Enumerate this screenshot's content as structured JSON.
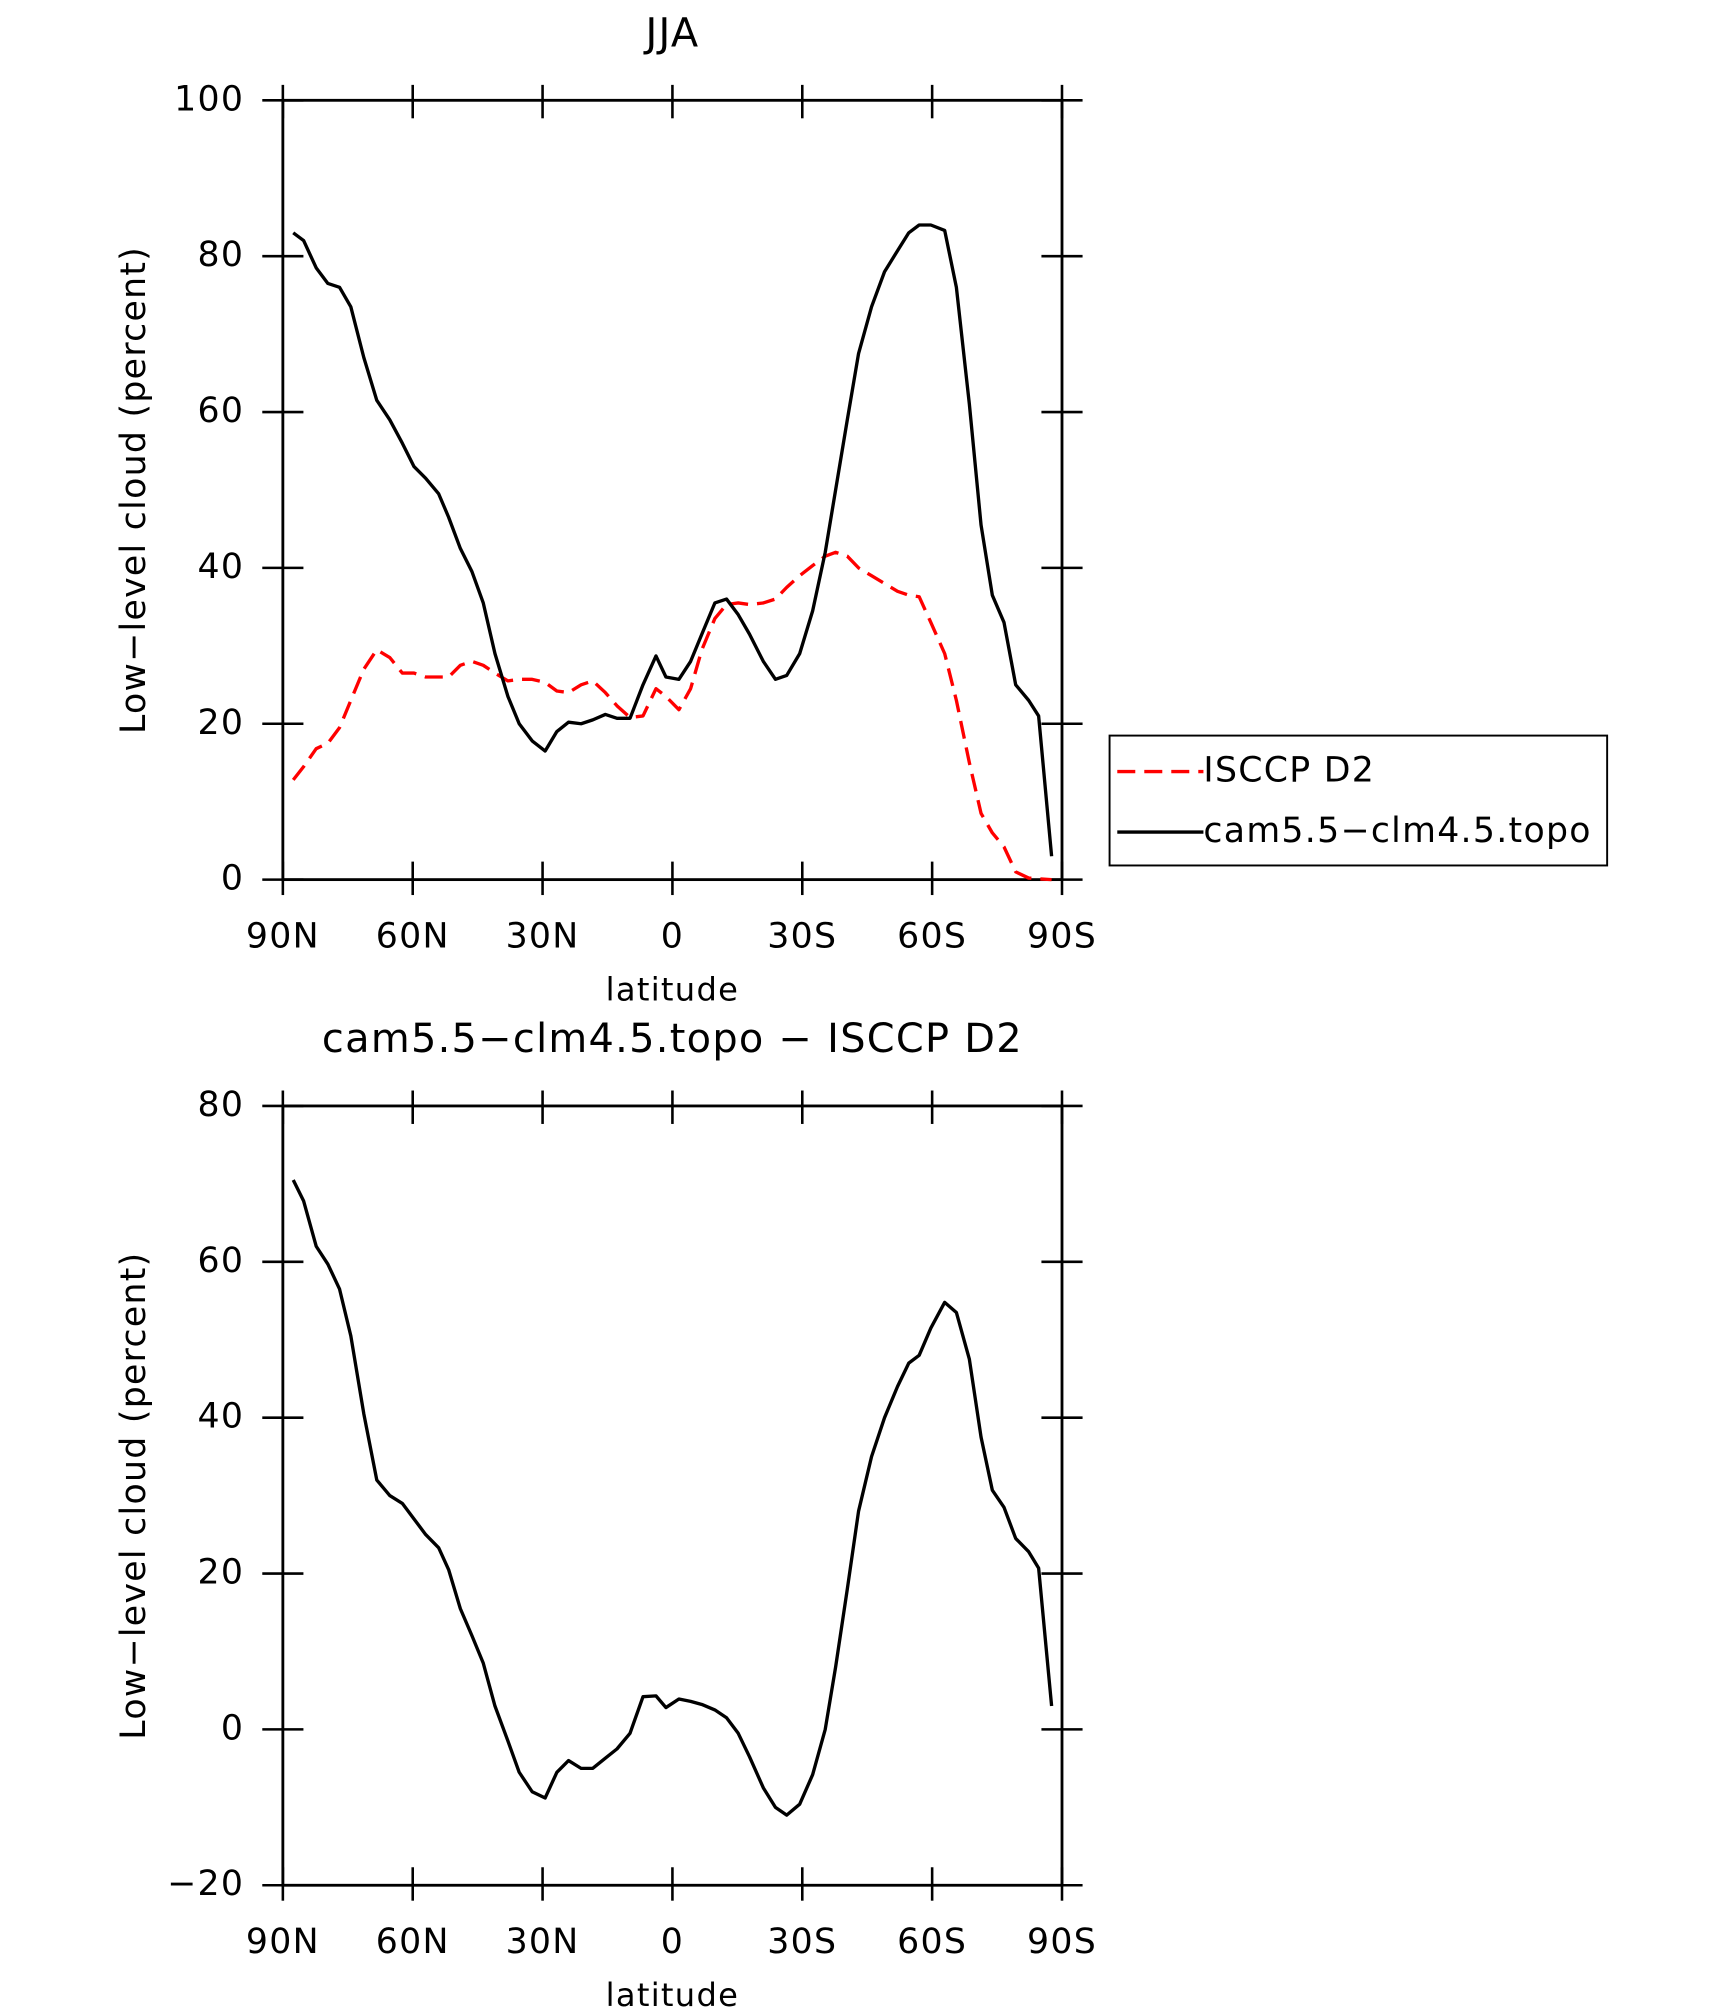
{
  "chart_data": [
    {
      "type": "line",
      "title": "JJA",
      "xlabel": "latitude",
      "ylabel": "Low−level cloud (percent)",
      "x": [
        87.6,
        85.2,
        82.3,
        79.6,
        76.9,
        74.3,
        71.3,
        68.3,
        65.3,
        62.4,
        59.7,
        57,
        54,
        51.7,
        49,
        46.3,
        43.7,
        41,
        38,
        35.4,
        32.4,
        29.4,
        26.7,
        24,
        21.1,
        18.4,
        15.5,
        12.8,
        9.8,
        6.8,
        3.8,
        1.5,
        -1.5,
        -4.2,
        -6.8,
        -9.8,
        -12.5,
        -15.2,
        -17.8,
        -21,
        -23.8,
        -26.4,
        -29.4,
        -32.4,
        -35.3,
        -37.7,
        -40.4,
        -43,
        -46,
        -49,
        -52,
        -54.6,
        -57,
        -59.7,
        -62.9,
        -65.6,
        -68.6,
        -71.3,
        -73.9,
        -76.6,
        -79.3,
        -82.3,
        -84.6,
        -87.6
      ],
      "series": [
        {
          "name": "ISCCP D2",
          "color": "#ff0000",
          "linestyle": "dashed",
          "values": [
            12.8,
            14.5,
            16.8,
            17.5,
            19.5,
            23,
            27,
            29.5,
            28.5,
            26.5,
            26.5,
            26,
            26,
            26,
            27.5,
            28,
            27.5,
            26.5,
            25.5,
            25.7,
            25.7,
            25.3,
            24.2,
            24,
            25,
            25.5,
            24,
            22.3,
            20.8,
            21,
            24.5,
            23.5,
            21.8,
            24.5,
            29.5,
            33.5,
            35.3,
            35.5,
            35.3,
            35.5,
            36,
            37.5,
            39,
            40.3,
            41.5,
            42,
            41.5,
            40,
            39,
            38,
            37,
            36.5,
            36.3,
            33,
            29,
            23,
            15,
            8.5,
            6,
            4.2,
            1,
            0.2,
            0.1,
            0
          ]
        },
        {
          "name": "cam5.5−clm4.5.topo",
          "color": "#000000",
          "linestyle": "solid",
          "values": [
            83,
            82,
            78.5,
            76.5,
            76,
            73.5,
            67,
            61.5,
            59,
            56,
            53,
            51.5,
            49.5,
            46.5,
            42.5,
            39.5,
            35.5,
            29,
            23.5,
            20,
            17.8,
            16.5,
            19,
            20.2,
            20,
            20.5,
            21.2,
            20.7,
            20.7,
            25,
            28.7,
            26,
            25.7,
            28,
            31.5,
            35.5,
            36,
            34,
            31.5,
            28,
            25.7,
            26.2,
            29,
            34.5,
            42,
            50,
            59,
            67.5,
            73.5,
            78,
            80.7,
            83,
            84,
            84,
            83.3,
            76,
            61,
            45.5,
            36.5,
            33,
            25,
            23,
            21,
            3
          ]
        }
      ],
      "xlim": [
        90,
        -90
      ],
      "xticks": [
        {
          "value": 90,
          "label": "90N"
        },
        {
          "value": 60,
          "label": "60N"
        },
        {
          "value": 30,
          "label": "30N"
        },
        0,
        {
          "value": -30,
          "label": "30S"
        },
        {
          "value": -60,
          "label": "60S"
        },
        {
          "value": -90,
          "label": "90S"
        }
      ],
      "ylim": [
        0,
        100
      ],
      "yticks": [
        0,
        20,
        40,
        60,
        80,
        100
      ],
      "legend": "outside-right"
    },
    {
      "type": "line",
      "title": "cam5.5−clm4.5.topo − ISCCP D2",
      "xlabel": "latitude",
      "ylabel": "Low−level cloud (percent)",
      "x": [
        87.6,
        85.2,
        82.3,
        79.6,
        76.9,
        74.3,
        71.3,
        68.3,
        65.3,
        62.4,
        59.7,
        57,
        54,
        51.7,
        49,
        46.3,
        43.7,
        41,
        38,
        35.4,
        32.4,
        29.4,
        26.7,
        24,
        21.1,
        18.4,
        15.5,
        12.8,
        9.8,
        6.8,
        3.8,
        1.5,
        -1.5,
        -4.2,
        -6.8,
        -9.8,
        -12.5,
        -15.2,
        -17.8,
        -21,
        -23.8,
        -26.4,
        -29.4,
        -32.4,
        -35.3,
        -37.7,
        -40.4,
        -43,
        -46,
        -49,
        -52,
        -54.6,
        -57,
        -59.7,
        -62.9,
        -65.6,
        -68.6,
        -71.3,
        -73.9,
        -76.6,
        -79.3,
        -82.3,
        -84.6,
        -87.6
      ],
      "values": [
        70.5,
        67.8,
        62,
        59.7,
        56.5,
        50.5,
        40.5,
        32,
        30,
        29,
        27,
        25,
        23.3,
        20.5,
        15.5,
        12,
        8.5,
        3,
        -1.5,
        -5.5,
        -8,
        -8.8,
        -5.5,
        -4,
        -5,
        -5,
        -3.7,
        -2.5,
        -0.5,
        4.2,
        4.3,
        2.8,
        3.9,
        3.6,
        3.2,
        2.5,
        1.5,
        -0.5,
        -3.5,
        -7.5,
        -10,
        -11,
        -9.6,
        -5.8,
        0,
        8,
        18,
        28,
        35,
        40,
        44,
        47,
        48,
        51.5,
        54.8,
        53.5,
        47.5,
        37.5,
        30.7,
        28.5,
        24.5,
        22.8,
        20.7,
        3
      ],
      "color": "#000000",
      "xlim": [
        90,
        -90
      ],
      "xticks": [
        {
          "value": 90,
          "label": "90N"
        },
        {
          "value": 60,
          "label": "60N"
        },
        {
          "value": 30,
          "label": "30N"
        },
        0,
        {
          "value": -30,
          "label": "30S"
        },
        {
          "value": -60,
          "label": "60S"
        },
        {
          "value": -90,
          "label": "90S"
        }
      ],
      "ylim": [
        -20,
        80
      ],
      "yticks": [
        {
          "value": -20,
          "label": "−20"
        },
        0,
        20,
        40,
        60,
        80
      ]
    }
  ]
}
